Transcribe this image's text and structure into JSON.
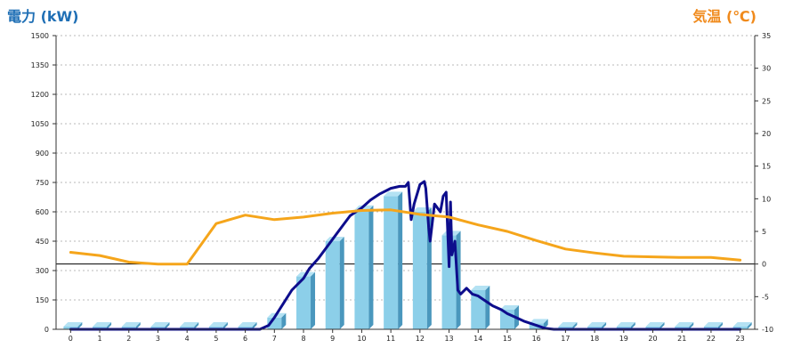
{
  "chart_data": {
    "type": "bar",
    "left_axis_title": "電力 (kW)",
    "right_axis_title": "気温 (℃)",
    "categories": [
      "0",
      "1",
      "2",
      "3",
      "4",
      "5",
      "6",
      "7",
      "8",
      "9",
      "10",
      "11",
      "12",
      "13",
      "14",
      "15",
      "16",
      "17",
      "18",
      "19",
      "20",
      "21",
      "22",
      "23"
    ],
    "y_left": {
      "min": 0,
      "max": 1500,
      "ticks": [
        0,
        150,
        300,
        450,
        600,
        750,
        900,
        1050,
        1200,
        1350,
        1500
      ]
    },
    "y_right": {
      "min": -10,
      "max": 35,
      "ticks": [
        -10,
        -5,
        0,
        5,
        10,
        15,
        20,
        25,
        30,
        35
      ]
    },
    "grid": true,
    "colors": {
      "bar": "#8ccfe9",
      "bar_dark": "#4a97bd",
      "bar_top": "#b4e2f3",
      "power_line": "#0d0d8c",
      "temp_line": "#f5a51b",
      "left_title": "#1f6fb5",
      "right_title": "#f08a1c",
      "zero_line": "#000000"
    },
    "series": [
      {
        "kind": "bar",
        "axis": "left",
        "values": [
          0,
          0,
          0,
          0,
          0,
          0,
          0,
          60,
          270,
          450,
          610,
          680,
          600,
          480,
          200,
          100,
          30,
          0,
          0,
          0,
          0,
          0,
          0,
          0
        ]
      },
      {
        "kind": "line",
        "axis": "left",
        "points": [
          [
            0,
            0
          ],
          [
            1,
            0
          ],
          [
            2,
            0
          ],
          [
            3,
            0
          ],
          [
            4,
            0
          ],
          [
            5,
            0
          ],
          [
            6,
            0
          ],
          [
            6.5,
            0
          ],
          [
            6.8,
            20
          ],
          [
            7,
            60
          ],
          [
            7.3,
            130
          ],
          [
            7.6,
            200
          ],
          [
            8,
            260
          ],
          [
            8.2,
            310
          ],
          [
            8.5,
            360
          ],
          [
            8.8,
            420
          ],
          [
            9,
            460
          ],
          [
            9.3,
            520
          ],
          [
            9.6,
            580
          ],
          [
            10,
            620
          ],
          [
            10.3,
            660
          ],
          [
            10.6,
            690
          ],
          [
            11,
            720
          ],
          [
            11.3,
            730
          ],
          [
            11.5,
            730
          ],
          [
            11.6,
            750
          ],
          [
            11.7,
            560
          ],
          [
            11.8,
            640
          ],
          [
            12,
            740
          ],
          [
            12.15,
            755
          ],
          [
            12.2,
            720
          ],
          [
            12.3,
            520
          ],
          [
            12.35,
            450
          ],
          [
            12.5,
            640
          ],
          [
            12.7,
            600
          ],
          [
            12.8,
            680
          ],
          [
            12.9,
            700
          ],
          [
            13,
            320
          ],
          [
            13.05,
            650
          ],
          [
            13.1,
            380
          ],
          [
            13.2,
            450
          ],
          [
            13.3,
            200
          ],
          [
            13.4,
            180
          ],
          [
            13.6,
            210
          ],
          [
            13.8,
            180
          ],
          [
            14,
            170
          ],
          [
            14.3,
            140
          ],
          [
            14.5,
            120
          ],
          [
            14.8,
            100
          ],
          [
            15,
            80
          ],
          [
            15.3,
            60
          ],
          [
            15.6,
            40
          ],
          [
            16,
            20
          ],
          [
            16.3,
            5
          ],
          [
            16.6,
            0
          ],
          [
            17,
            0
          ],
          [
            18,
            0
          ],
          [
            19,
            0
          ],
          [
            20,
            0
          ],
          [
            21,
            0
          ],
          [
            22,
            0
          ],
          [
            23,
            0
          ]
        ]
      },
      {
        "kind": "line",
        "axis": "right",
        "points": [
          [
            0,
            1.8
          ],
          [
            1,
            1.3
          ],
          [
            2,
            0.3
          ],
          [
            3,
            0
          ],
          [
            4,
            0
          ],
          [
            5,
            6.2
          ],
          [
            6,
            7.5
          ],
          [
            7,
            6.8
          ],
          [
            8,
            7.2
          ],
          [
            9,
            7.8
          ],
          [
            10,
            8.2
          ],
          [
            11,
            8.3
          ],
          [
            12,
            7.6
          ],
          [
            13,
            7.2
          ],
          [
            14,
            6.0
          ],
          [
            15,
            5.0
          ],
          [
            16,
            3.6
          ],
          [
            17,
            2.3
          ],
          [
            18,
            1.7
          ],
          [
            19,
            1.2
          ],
          [
            20,
            1.1
          ],
          [
            21,
            1.0
          ],
          [
            22,
            1.0
          ],
          [
            23,
            0.6
          ]
        ]
      }
    ]
  }
}
